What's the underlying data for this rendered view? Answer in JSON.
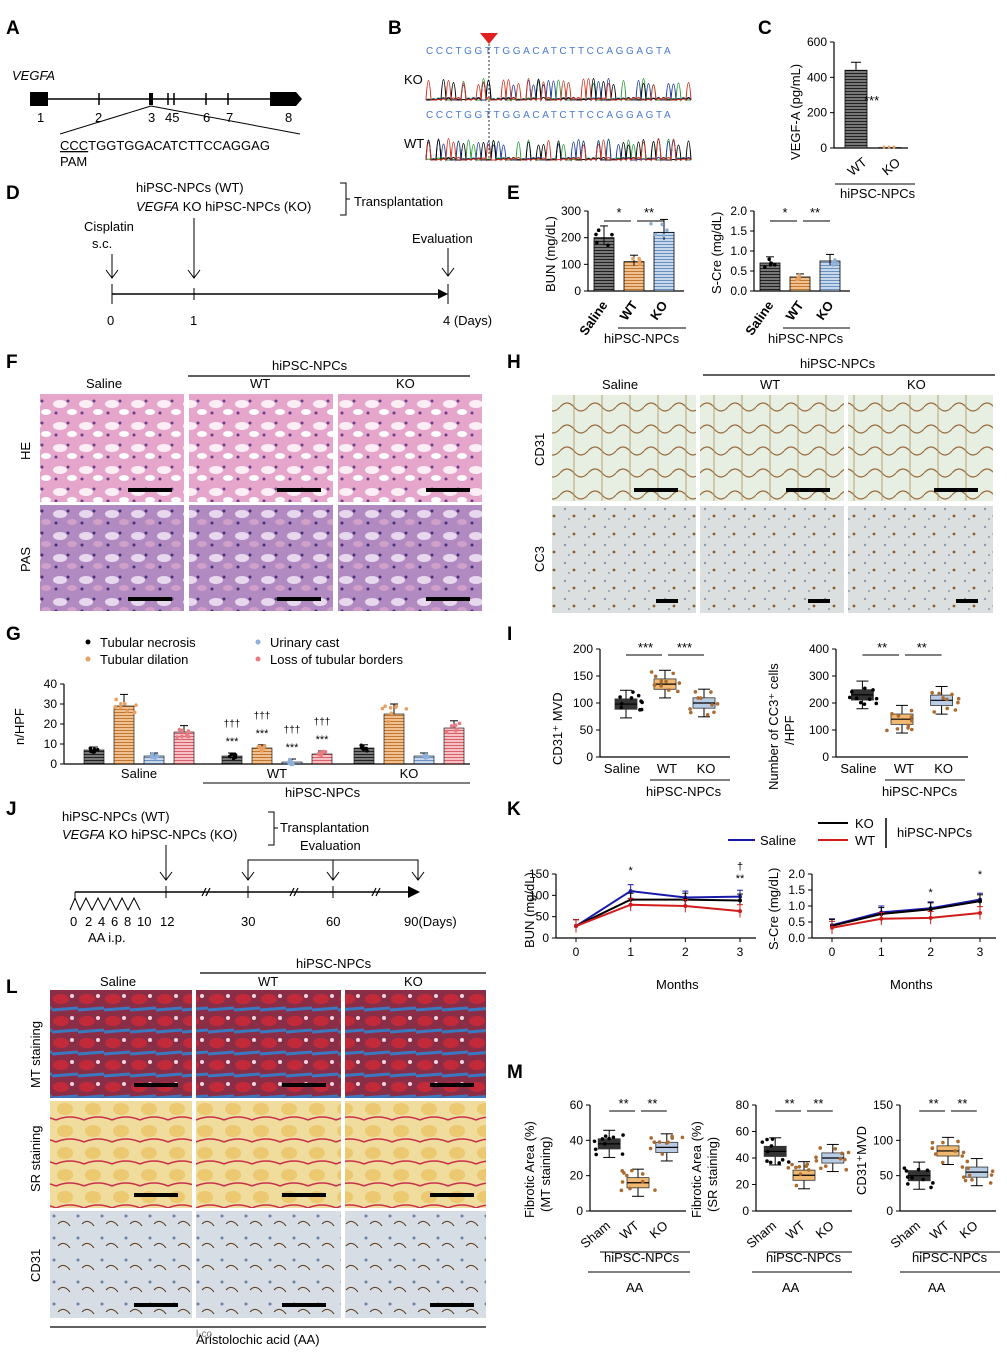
{
  "panels": {
    "A": "A",
    "B": "B",
    "C": "C",
    "D": "D",
    "E": "E",
    "F": "F",
    "G": "G",
    "H": "H",
    "I": "I",
    "J": "J",
    "K": "K",
    "L": "L",
    "M": "M"
  },
  "a": {
    "gene": "VEGFA",
    "exons": [
      "1",
      "2",
      "3",
      "45",
      "6",
      "7",
      "8"
    ],
    "pam": "CCC",
    "seq_rest": "TGGTGGACATCTTCCAGGAG",
    "pam_label": "PAM"
  },
  "b": {
    "seq": "CCCTGGTTGGACATCTTCCAGGAGTA",
    "row_ko": "KO",
    "row_wt": "WT"
  },
  "c": {
    "ylabel": "VEGF-A (pg/mL)",
    "ticks": [
      "0",
      "200",
      "400",
      "600"
    ],
    "cats": [
      "WT",
      "KO"
    ],
    "sig": "***",
    "group": "hiPSC-NPCs"
  },
  "d": {
    "line1": "hiPSC-NPCs (WT)",
    "line2_italic": "VEGFA",
    "line2_rest": " KO hiPSC-NPCs (KO)",
    "bracket": "Transplantation",
    "cisplatin": "Cisplatin",
    "sc": "s.c.",
    "evaluation": "Evaluation",
    "t0": "0",
    "t1": "1",
    "t4": "4 (Days)"
  },
  "e": {
    "bun_label": "BUN (mg/dL)",
    "bun_ticks": [
      "0",
      "100",
      "200",
      "300"
    ],
    "cre_label": "S-Cre (mg/dL)",
    "cre_ticks": [
      "0.0",
      "0.5",
      "1.0",
      "1.5",
      "2.0"
    ],
    "cats": [
      "Saline",
      "WT",
      "KO"
    ],
    "sig1": "*",
    "sig2": "**",
    "group": "hiPSC-NPCs"
  },
  "f": {
    "group": "hiPSC-NPCs",
    "cols": [
      "Saline",
      "WT",
      "KO"
    ],
    "rows": [
      "HE",
      "PAS"
    ]
  },
  "h": {
    "group": "hiPSC-NPCs",
    "cols": [
      "Saline",
      "WT",
      "KO"
    ],
    "rows": [
      "CD31",
      "CC3"
    ]
  },
  "g": {
    "legend": [
      "Tubular necrosis",
      "Tubular dilation",
      "Urinary cast",
      "Loss of tubular borders"
    ],
    "ylabel": "n/HPF",
    "ticks": [
      "0",
      "10",
      "20",
      "30",
      "40"
    ],
    "groups": [
      "Saline",
      "WT",
      "KO"
    ],
    "group": "hiPSC-NPCs",
    "sig": "***",
    "dag": "†††"
  },
  "i": {
    "ylabel1": "CD31⁺ MVD",
    "ticks1": [
      "0",
      "50",
      "100",
      "150",
      "200"
    ],
    "ylabel2a": "Number of CC3⁺ cells",
    "ylabel2b": "/HPF",
    "ticks2": [
      "0",
      "100",
      "200",
      "300",
      "400"
    ],
    "cats": [
      "Saline",
      "WT",
      "KO"
    ],
    "sig1": "***",
    "sig2": "**",
    "group": "hiPSC-NPCs"
  },
  "j": {
    "line1": "hiPSC-NPCs (WT)",
    "line2_italic": "VEGFA",
    "line2_rest": " KO hiPSC-NPCs (KO)",
    "bracket1": "Transplantation",
    "bracket2": "Evaluation",
    "ticks": [
      "0",
      "2",
      "4",
      "6",
      "8",
      "10"
    ],
    "aa": "AA i.p.",
    "t12": "12",
    "t30": "30",
    "t60": "60",
    "t90": "90(Days)"
  },
  "k": {
    "legend_saline": "Saline",
    "legend_ko": "KO",
    "legend_wt": "WT",
    "group": "hiPSC-NPCs",
    "bun_label": "BUN (mg/dL)",
    "bun_ticks": [
      "0",
      "50",
      "100",
      "150"
    ],
    "cre_label": "S-Cre (mg/dL)",
    "cre_ticks": [
      "0.0",
      "0.5",
      "1.0",
      "1.5",
      "2.0"
    ],
    "xticks": [
      "0",
      "1",
      "2",
      "3"
    ],
    "xlabel": "Months",
    "sig1": "*",
    "sig2": "†",
    "sig3": "**"
  },
  "l": {
    "group": "hiPSC-NPCs",
    "cols": [
      "Saline",
      "WT",
      "KO"
    ],
    "rows": [
      "MT staining",
      "SR staining",
      "CD31"
    ],
    "bottom": "Aristolochic acid (AA)",
    "overlap": "l-co"
  },
  "m": {
    "y1a": "Fibrotic Area (%)",
    "y1b": "(MT staining)",
    "ticks1": [
      "0",
      "20",
      "40",
      "60"
    ],
    "y2a": "Fibrotic Area (%)",
    "y2b": "(SR staining)",
    "ticks2": [
      "0",
      "20",
      "40",
      "60",
      "80"
    ],
    "y3": "CD31⁺MVD",
    "ticks3": [
      "0",
      "50",
      "100",
      "150"
    ],
    "cats": [
      "Sham",
      "WT",
      "KO"
    ],
    "sig": "**",
    "group": "hiPSC-NPCs",
    "aa": "AA"
  },
  "colors": {
    "saline": "#1a1aaa",
    "ko": "#000000",
    "wt": "#d01c1c",
    "orange": "#e8a060",
    "blue_box": "#8fb0d8",
    "pink": "#e87a82"
  },
  "chart_data": [
    {
      "panel": "C",
      "type": "bar",
      "categories": [
        "WT",
        "KO"
      ],
      "values": [
        440,
        2
      ],
      "ylabel": "VEGF-A (pg/mL)",
      "ylim": [
        0,
        600
      ]
    },
    {
      "panel": "E-left",
      "type": "bar",
      "categories": [
        "Saline",
        "WT",
        "KO"
      ],
      "values": [
        200,
        110,
        220
      ],
      "ylabel": "BUN (mg/dL)",
      "ylim": [
        0,
        300
      ]
    },
    {
      "panel": "E-right",
      "type": "bar",
      "categories": [
        "Saline",
        "WT",
        "KO"
      ],
      "values": [
        0.7,
        0.35,
        0.75
      ],
      "ylabel": "S-Cre (mg/dL)",
      "ylim": [
        0,
        2
      ]
    },
    {
      "panel": "G",
      "type": "bar",
      "categories": [
        "Saline",
        "WT",
        "KO"
      ],
      "series": [
        {
          "name": "Tubular necrosis",
          "values": [
            7,
            4,
            8
          ]
        },
        {
          "name": "Tubular dilation",
          "values": [
            29,
            8,
            25
          ]
        },
        {
          "name": "Urinary cast",
          "values": [
            4,
            1,
            4
          ]
        },
        {
          "name": "Loss of tubular borders",
          "values": [
            16,
            5,
            18
          ]
        }
      ],
      "ylabel": "n/HPF",
      "ylim": [
        0,
        40
      ]
    },
    {
      "panel": "I-left",
      "type": "box",
      "categories": [
        "Saline",
        "WT",
        "KO"
      ],
      "values": [
        98,
        135,
        100
      ],
      "ylabel": "CD31⁺ MVD",
      "ylim": [
        0,
        200
      ]
    },
    {
      "panel": "I-right",
      "type": "box",
      "categories": [
        "Saline",
        "WT",
        "KO"
      ],
      "values": [
        230,
        140,
        210
      ],
      "ylabel": "Number of CC3⁺ cells /HPF",
      "ylim": [
        0,
        400
      ]
    },
    {
      "panel": "K-left",
      "type": "line",
      "x": [
        0,
        1,
        2,
        3
      ],
      "series": [
        {
          "name": "Saline",
          "values": [
            28,
            110,
            95,
            97
          ]
        },
        {
          "name": "KO",
          "values": [
            28,
            90,
            90,
            88
          ]
        },
        {
          "name": "WT",
          "values": [
            28,
            78,
            75,
            63
          ]
        }
      ],
      "ylabel": "BUN (mg/dL)",
      "xlabel": "Months",
      "ylim": [
        0,
        150
      ]
    },
    {
      "panel": "K-right",
      "type": "line",
      "x": [
        0,
        1,
        2,
        3
      ],
      "series": [
        {
          "name": "Saline",
          "values": [
            0.4,
            0.8,
            0.93,
            1.2
          ]
        },
        {
          "name": "KO",
          "values": [
            0.38,
            0.75,
            0.9,
            1.15
          ]
        },
        {
          "name": "WT",
          "values": [
            0.32,
            0.6,
            0.63,
            0.78
          ]
        }
      ],
      "ylabel": "S-Cre (mg/dL)",
      "xlabel": "Months",
      "ylim": [
        0,
        2
      ]
    },
    {
      "panel": "M-1",
      "type": "box",
      "categories": [
        "Sham",
        "WT",
        "KO"
      ],
      "values": [
        38,
        16,
        36
      ],
      "ylabel": "Fibrotic Area (%) (MT staining)",
      "ylim": [
        0,
        60
      ]
    },
    {
      "panel": "M-2",
      "type": "box",
      "categories": [
        "Sham",
        "WT",
        "KO"
      ],
      "values": [
        45,
        27,
        40
      ],
      "ylabel": "Fibrotic Area (%) (SR staining)",
      "ylim": [
        0,
        80
      ]
    },
    {
      "panel": "M-3",
      "type": "box",
      "categories": [
        "Sham",
        "WT",
        "KO"
      ],
      "values": [
        50,
        85,
        55
      ],
      "ylabel": "CD31⁺MVD",
      "ylim": [
        0,
        150
      ]
    }
  ]
}
